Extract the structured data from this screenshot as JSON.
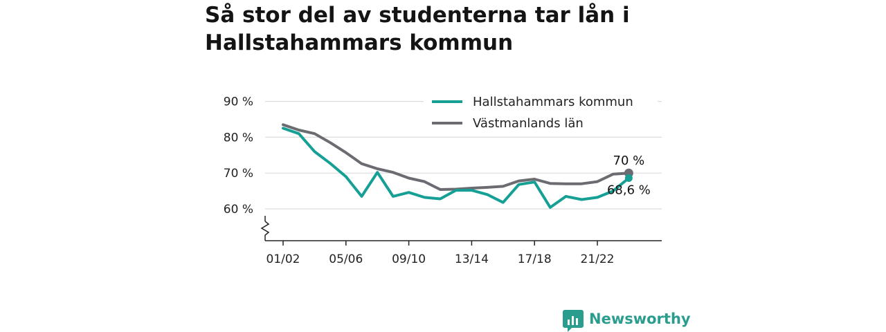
{
  "colors": {
    "hallstahammar": "#16a095",
    "vastmanland": "#6b6b72",
    "grid": "#dcdcdc",
    "axis": "#222222",
    "brand": "#2a9d8f"
  },
  "brand": {
    "name": "Newsworthy",
    "icon": "newsworthy-logo-icon"
  },
  "chart_data": {
    "type": "line",
    "title": "Så stor del av studenterna tar lån i Hallstahammars kommun",
    "xlabel": "",
    "ylabel": "",
    "x": [
      "01/02",
      "02/03",
      "03/04",
      "04/05",
      "05/06",
      "06/07",
      "07/08",
      "08/09",
      "09/10",
      "10/11",
      "11/12",
      "12/13",
      "13/14",
      "14/15",
      "15/16",
      "16/17",
      "17/18",
      "18/19",
      "19/20",
      "20/21",
      "21/22",
      "22/23",
      "23/24"
    ],
    "x_tick_labels": [
      "01/02",
      "05/06",
      "09/10",
      "13/14",
      "17/18",
      "21/22"
    ],
    "y_ticks": [
      60,
      70,
      80,
      90
    ],
    "y_tick_labels": [
      "60 %",
      "70 %",
      "80 %",
      "90 %"
    ],
    "ylim": [
      52,
      92
    ],
    "y_axis_break": true,
    "grid": true,
    "legend_position": "top-right",
    "series": [
      {
        "name": "Hallstahammars kommun",
        "color": "#16a095",
        "values": [
          82.5,
          81,
          76,
          72.7,
          69,
          63.5,
          70.2,
          63.5,
          64.6,
          63.2,
          62.8,
          65.2,
          65.2,
          64,
          61.8,
          66.8,
          67.5,
          60.4,
          63.5,
          62.6,
          63.2,
          65,
          68.6
        ],
        "end_label": "68,6 %"
      },
      {
        "name": "Västmanlands län",
        "color": "#6b6b72",
        "values": [
          83.5,
          82,
          81,
          78.5,
          75.7,
          72.6,
          71.2,
          70.2,
          68.6,
          67.6,
          65.4,
          65.5,
          65.8,
          66,
          66.3,
          67.8,
          68.3,
          67.1,
          67,
          67,
          67.6,
          69.7,
          70
        ],
        "end_label": "70 %"
      }
    ]
  }
}
